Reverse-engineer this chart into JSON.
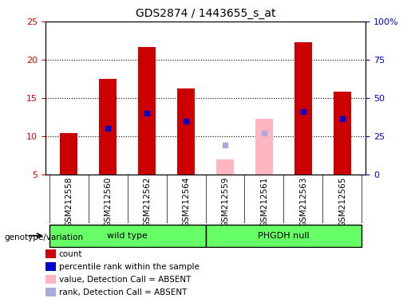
{
  "title": "GDS2874 / 1443655_s_at",
  "samples": [
    "GSM212558",
    "GSM212560",
    "GSM212562",
    "GSM212564",
    "GSM212559",
    "GSM212561",
    "GSM212563",
    "GSM212565"
  ],
  "count_values": [
    10.4,
    17.5,
    21.7,
    16.2,
    null,
    null,
    22.3,
    15.8
  ],
  "percentile_values": [
    null,
    11.0,
    13.0,
    12.0,
    null,
    null,
    13.2,
    12.3
  ],
  "absent_count_values": [
    null,
    null,
    null,
    null,
    7.0,
    12.3,
    null,
    null
  ],
  "absent_rank_values": [
    null,
    null,
    null,
    null,
    8.8,
    10.4,
    null,
    null
  ],
  "count_color": "#CC0000",
  "percentile_color": "#0000CC",
  "absent_count_color": "#FFB6C1",
  "absent_rank_color": "#AAAADD",
  "ylim_left": [
    5,
    25
  ],
  "ylim_right": [
    0,
    100
  ],
  "yticks_left": [
    5,
    10,
    15,
    20,
    25
  ],
  "yticks_right": [
    0,
    25,
    50,
    75,
    100
  ],
  "ytick_labels_right": [
    "0",
    "25",
    "50",
    "75",
    "100%"
  ],
  "groups": [
    {
      "label": "wild type",
      "start": 0,
      "end": 4
    },
    {
      "label": "PHGDH null",
      "start": 4,
      "end": 8
    }
  ],
  "group_color": "#66FF66",
  "bar_width": 0.45,
  "bg_color": "#C8C8C8",
  "legend_items": [
    {
      "label": "count",
      "color": "#CC0000"
    },
    {
      "label": "percentile rank within the sample",
      "color": "#0000CC"
    },
    {
      "label": "value, Detection Call = ABSENT",
      "color": "#FFB6C1"
    },
    {
      "label": "rank, Detection Call = ABSENT",
      "color": "#AAAADD"
    }
  ]
}
